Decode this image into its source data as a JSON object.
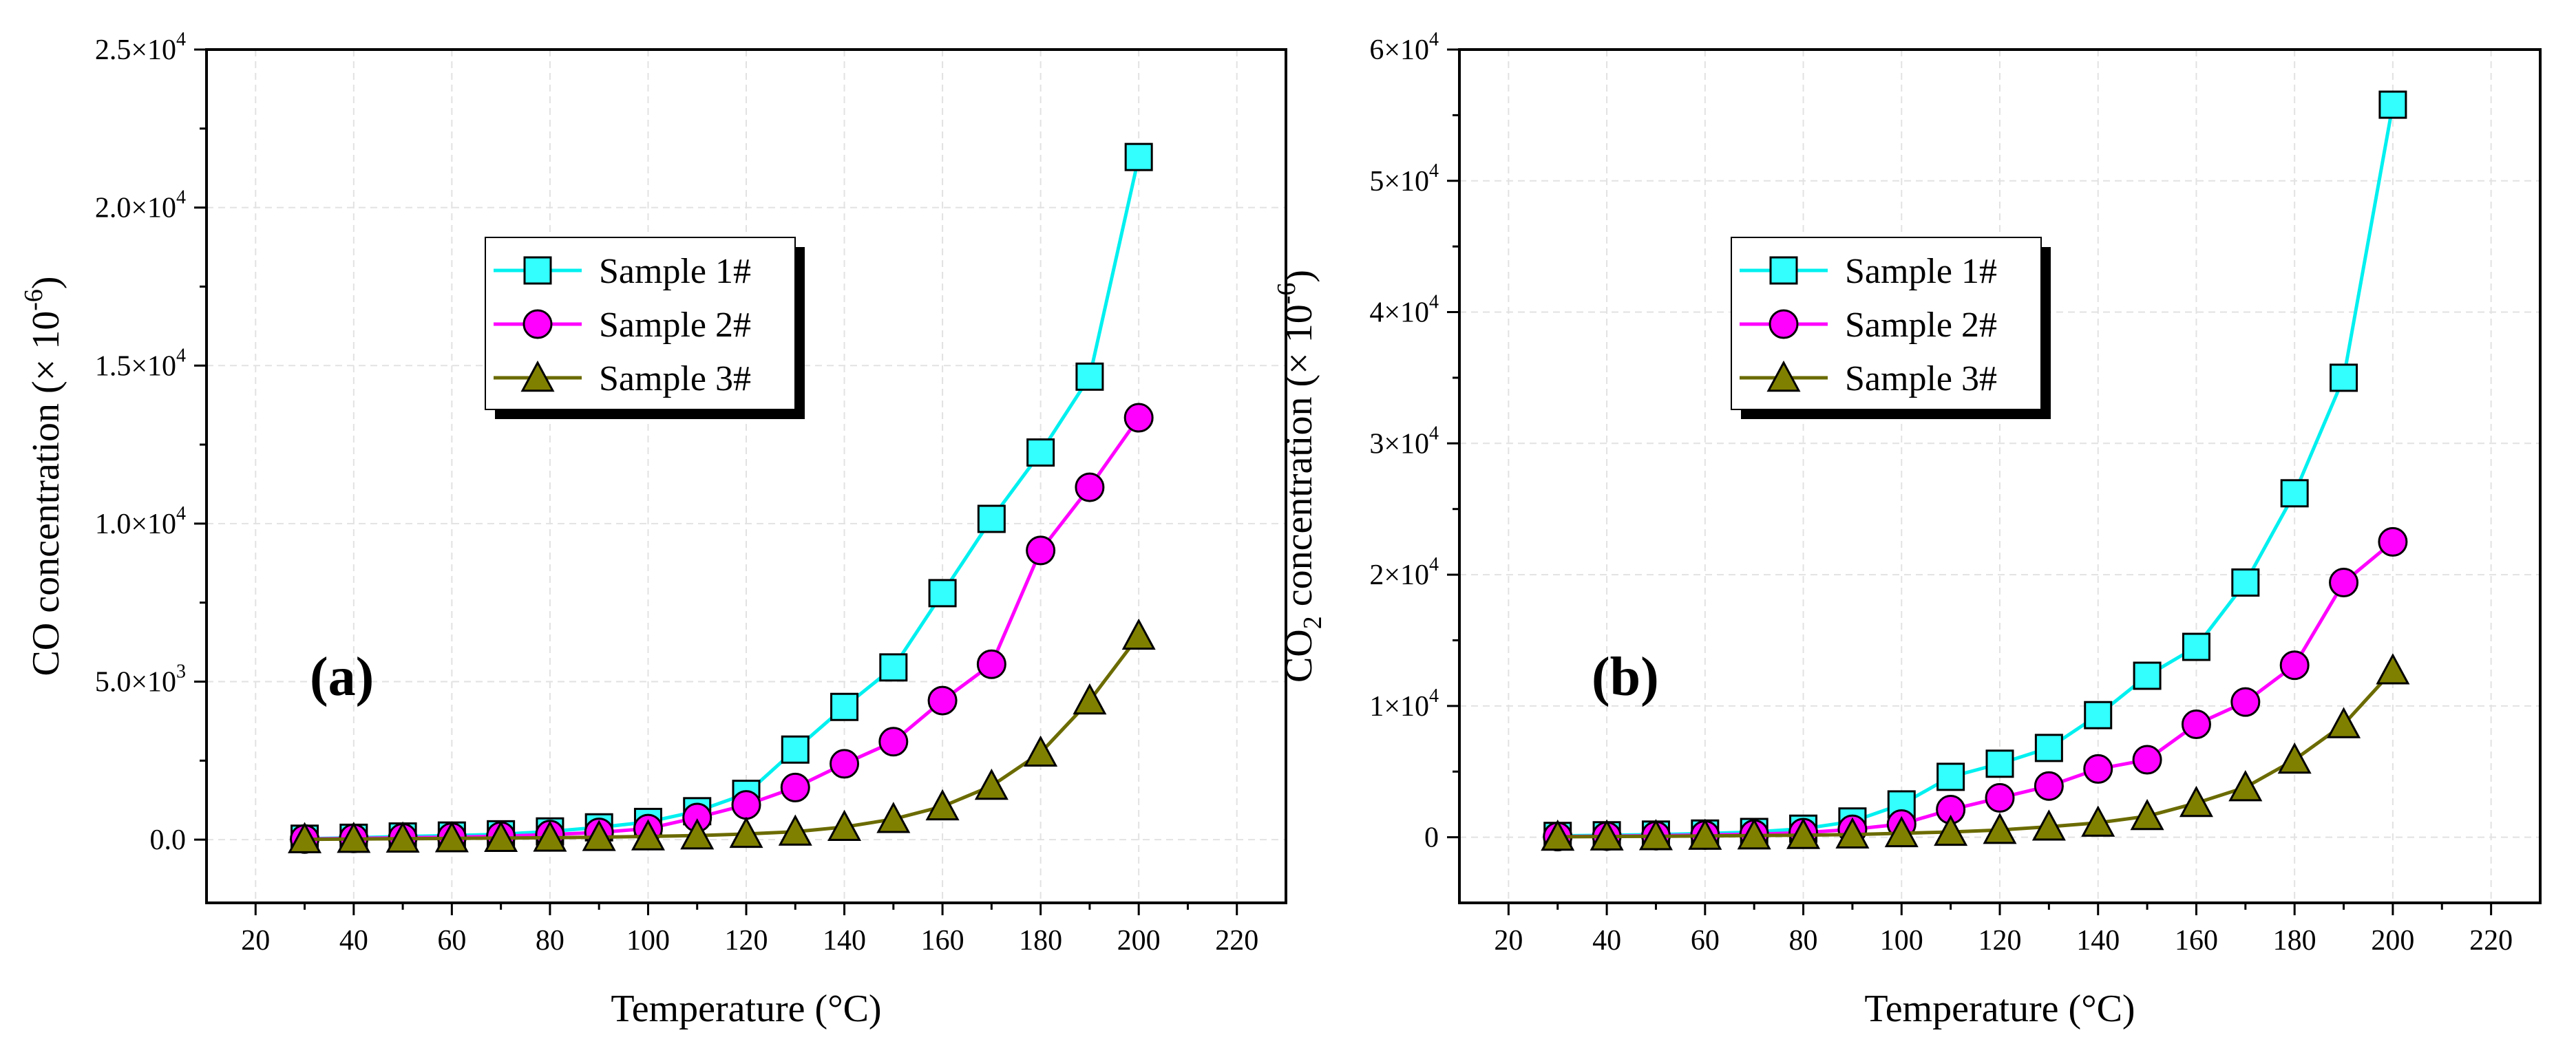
{
  "chart_data": [
    {
      "type": "line",
      "panel_label": "(a)",
      "xlabel": "Temperature (°C)",
      "ylabel": {
        "main": "CO concentration (",
        "times": "×",
        "base": " 10",
        "exp": "-6",
        "close": ")"
      },
      "xlim": [
        10,
        230
      ],
      "ylim": [
        -2000,
        25000
      ],
      "xticks": [
        20,
        40,
        60,
        80,
        100,
        120,
        140,
        160,
        180,
        200,
        220
      ],
      "yticks": [
        {
          "value": 0,
          "label": "0.0",
          "exp": ""
        },
        {
          "value": 5000,
          "label": "5.0×10",
          "exp": "3"
        },
        {
          "value": 10000,
          "label": "1.0×10",
          "exp": "4"
        },
        {
          "value": 15000,
          "label": "1.5×10",
          "exp": "4"
        },
        {
          "value": 20000,
          "label": "2.0×10",
          "exp": "4"
        },
        {
          "value": 25000,
          "label": "2.5×10",
          "exp": "4"
        }
      ],
      "grid": true,
      "legend_position": "upper-middle",
      "x": [
        30,
        40,
        50,
        60,
        70,
        80,
        90,
        100,
        110,
        120,
        130,
        140,
        150,
        160,
        170,
        180,
        190,
        200
      ],
      "series": [
        {
          "name": "Sample 1#",
          "line_color": "#00f0f0",
          "fill_color": "#33ffff",
          "marker": "square",
          "values": [
            30,
            60,
            100,
            130,
            170,
            260,
            390,
            560,
            900,
            1450,
            2850,
            4200,
            5450,
            7800,
            10150,
            12250,
            14650,
            21600
          ]
        },
        {
          "name": "Sample 2#",
          "line_color": "#ff00ff",
          "fill_color": "#ff00ff",
          "marker": "circle",
          "values": [
            20,
            40,
            60,
            80,
            110,
            160,
            230,
            350,
            700,
            1100,
            1650,
            2400,
            3100,
            4400,
            5550,
            9150,
            11150,
            13350
          ]
        },
        {
          "name": "Sample 3#",
          "line_color": "#6b6b00",
          "fill_color": "#808000",
          "marker": "triangle",
          "values": [
            10,
            20,
            30,
            40,
            50,
            60,
            80,
            100,
            130,
            180,
            250,
            400,
            650,
            1050,
            1700,
            2750,
            4400,
            6450
          ]
        }
      ]
    },
    {
      "type": "line",
      "panel_label": "(b)",
      "xlabel": "Temperature (°C)",
      "ylabel": {
        "main": "CO",
        "sub": "2",
        "main2": " concentration (",
        "times": "×",
        "base": " 10",
        "exp": "-6",
        "close": ")"
      },
      "xlim": [
        10,
        230
      ],
      "ylim": [
        -5000,
        60000
      ],
      "xticks": [
        20,
        40,
        60,
        80,
        100,
        120,
        140,
        160,
        180,
        200,
        220
      ],
      "yticks": [
        {
          "value": 0,
          "label": "0",
          "exp": ""
        },
        {
          "value": 10000,
          "label": "1×10",
          "exp": "4"
        },
        {
          "value": 20000,
          "label": "2×10",
          "exp": "4"
        },
        {
          "value": 30000,
          "label": "3×10",
          "exp": "4"
        },
        {
          "value": 40000,
          "label": "4×10",
          "exp": "4"
        },
        {
          "value": 50000,
          "label": "5×10",
          "exp": "4"
        },
        {
          "value": 60000,
          "label": "6×10",
          "exp": "4"
        }
      ],
      "grid": true,
      "legend_position": "upper-middle",
      "x": [
        30,
        40,
        50,
        60,
        70,
        80,
        90,
        100,
        110,
        120,
        130,
        140,
        150,
        160,
        170,
        180,
        190,
        200
      ],
      "series": [
        {
          "name": "Sample 1#",
          "line_color": "#00f0f0",
          "fill_color": "#33ffff",
          "marker": "square",
          "values": [
            100,
            150,
            200,
            280,
            400,
            650,
            1200,
            2500,
            4600,
            5600,
            6800,
            9300,
            12300,
            14500,
            19400,
            26200,
            35000,
            55800
          ]
        },
        {
          "name": "Sample 2#",
          "line_color": "#ff00ff",
          "fill_color": "#ff00ff",
          "marker": "circle",
          "values": [
            50,
            80,
            120,
            170,
            230,
            350,
            600,
            1000,
            2100,
            3000,
            3900,
            5200,
            5900,
            8600,
            10300,
            13100,
            19400,
            22500
          ]
        },
        {
          "name": "Sample 3#",
          "line_color": "#6b6b00",
          "fill_color": "#808000",
          "marker": "triangle",
          "values": [
            30,
            50,
            70,
            100,
            130,
            160,
            200,
            300,
            400,
            550,
            800,
            1100,
            1600,
            2600,
            3800,
            5900,
            8600,
            12700
          ]
        }
      ]
    }
  ]
}
